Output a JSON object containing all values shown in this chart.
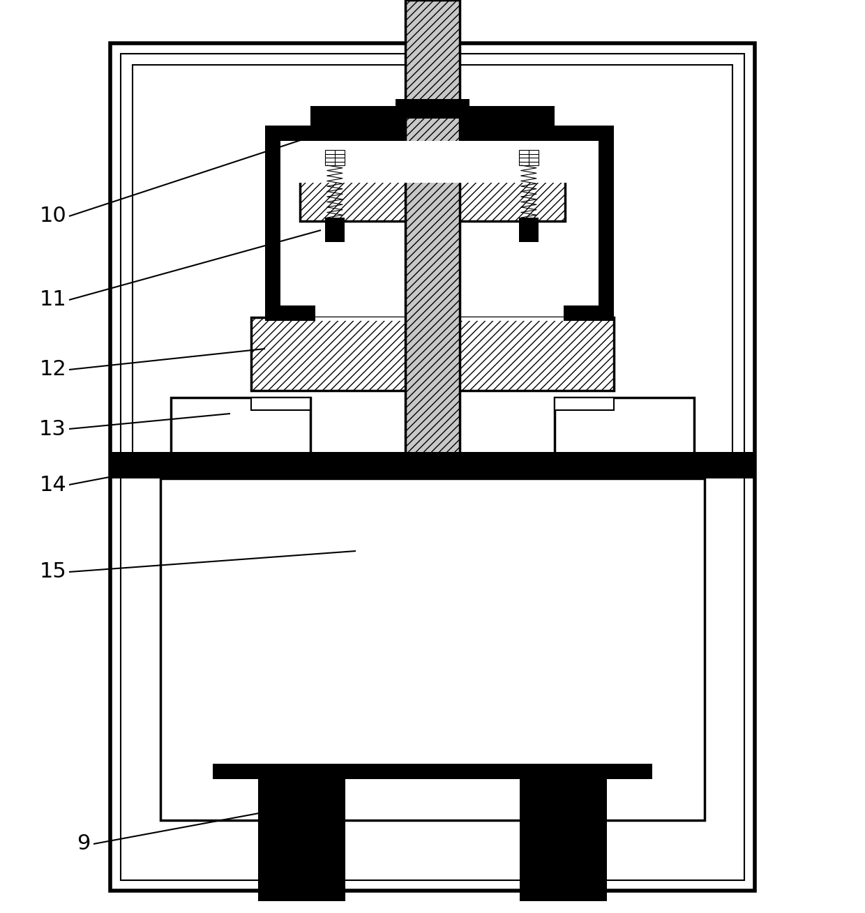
{
  "bg_color": "#ffffff",
  "line_color": "#000000",
  "gray_hatch_color": "#aaaaaa",
  "labels_info": [
    [
      "10",
      95,
      310,
      510,
      175
    ],
    [
      "11",
      95,
      430,
      460,
      330
    ],
    [
      "12",
      95,
      530,
      380,
      500
    ],
    [
      "13",
      95,
      615,
      330,
      593
    ],
    [
      "14",
      95,
      695,
      230,
      670
    ],
    [
      "15",
      95,
      820,
      510,
      790
    ],
    [
      "9",
      130,
      1210,
      430,
      1155
    ]
  ]
}
